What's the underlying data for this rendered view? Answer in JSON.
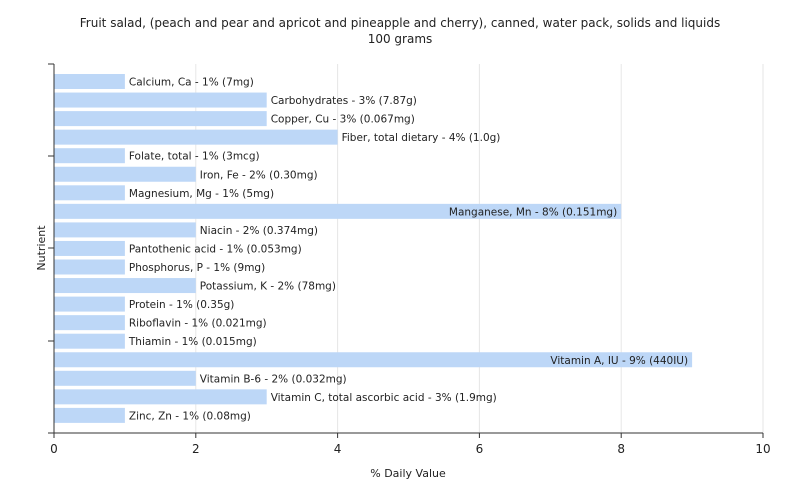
{
  "chart_data": {
    "type": "bar",
    "orientation": "horizontal",
    "title": "Fruit salad, (peach and pear and apricot and pineapple and cherry), canned, water pack, solids and liquids",
    "subtitle": "100 grams",
    "xlabel": "% Daily Value",
    "ylabel": "Nutrient",
    "xlim": [
      0,
      10
    ],
    "xticks": [
      0,
      2,
      4,
      6,
      8,
      10
    ],
    "grid": true,
    "bar_color": "#bdd7f7",
    "categories": [
      "Calcium, Ca",
      "Carbohydrates",
      "Copper, Cu",
      "Fiber, total dietary",
      "Folate, total",
      "Iron, Fe",
      "Magnesium, Mg",
      "Manganese, Mn",
      "Niacin",
      "Pantothenic acid",
      "Phosphorus, P",
      "Potassium, K",
      "Protein",
      "Riboflavin",
      "Thiamin",
      "Vitamin A, IU",
      "Vitamin B-6",
      "Vitamin C, total ascorbic acid",
      "Zinc, Zn"
    ],
    "values": [
      1,
      3,
      3,
      4,
      1,
      2,
      1,
      8,
      2,
      1,
      1,
      2,
      1,
      1,
      1,
      9,
      2,
      3,
      1
    ],
    "labels": [
      "Calcium, Ca - 1% (7mg)",
      "Carbohydrates - 3% (7.87g)",
      "Copper, Cu - 3% (0.067mg)",
      "Fiber, total dietary - 4% (1.0g)",
      "Folate, total - 1% (3mcg)",
      "Iron, Fe - 2% (0.30mg)",
      "Magnesium, Mg - 1% (5mg)",
      "Manganese, Mn - 8% (0.151mg)",
      "Niacin - 2% (0.374mg)",
      "Pantothenic acid - 1% (0.053mg)",
      "Phosphorus, P - 1% (9mg)",
      "Potassium, K - 2% (78mg)",
      "Protein - 1% (0.35g)",
      "Riboflavin - 1% (0.021mg)",
      "Thiamin - 1% (0.015mg)",
      "Vitamin A, IU - 9% (440IU)",
      "Vitamin B-6 - 2% (0.032mg)",
      "Vitamin C, total ascorbic acid - 3% (1.9mg)",
      "Zinc, Zn - 1% (0.08mg)"
    ]
  }
}
